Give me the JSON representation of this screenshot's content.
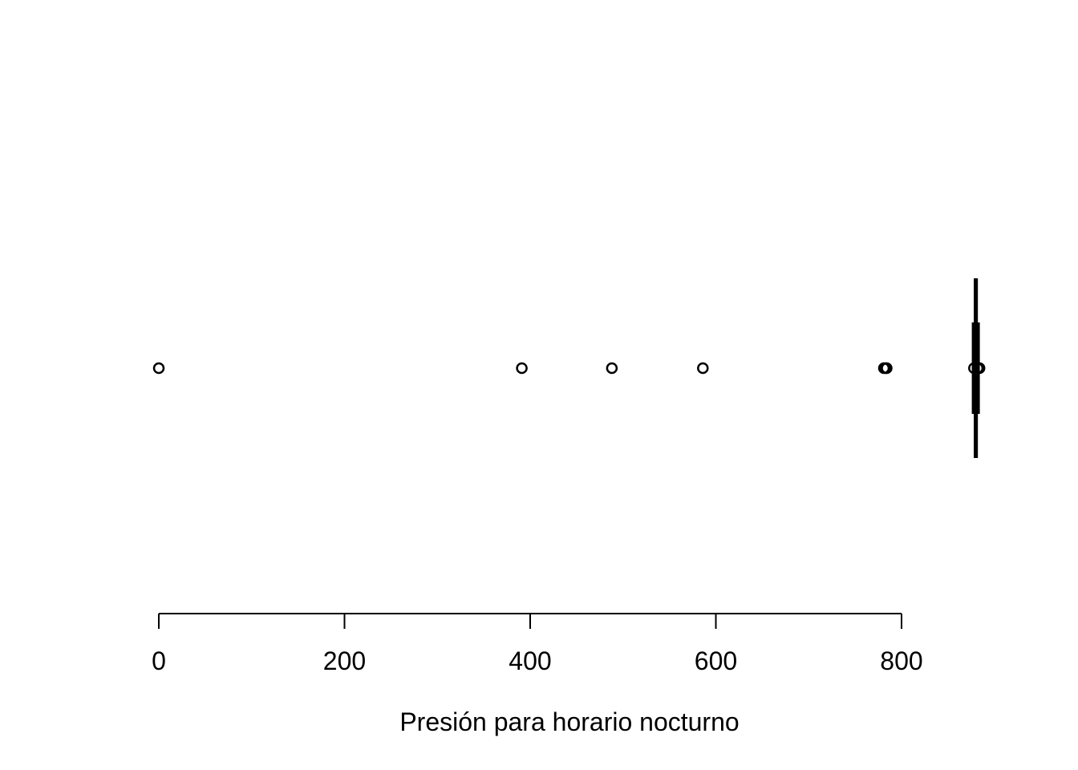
{
  "chart_data": {
    "type": "boxplot",
    "orientation": "horizontal",
    "title": "",
    "xlabel": "Presión para horario nocturno",
    "ylabel": "",
    "xlim": [
      0,
      880
    ],
    "x_ticks": [
      0,
      200,
      400,
      600,
      800
    ],
    "x_tick_labels": [
      "0",
      "200",
      "400",
      "600",
      "800"
    ],
    "grid": false,
    "box": {
      "whisker_low": 880,
      "q1": 880,
      "median": 880,
      "q3": 880,
      "whisker_high": 880
    },
    "outliers": [
      0,
      391,
      488,
      586,
      781,
      783,
      784,
      878,
      882,
      884
    ],
    "color": "#000000"
  }
}
